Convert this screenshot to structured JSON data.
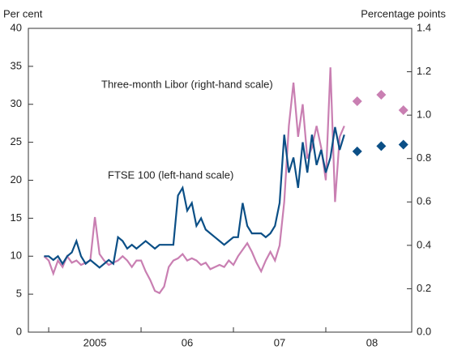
{
  "chart_data": {
    "type": "line",
    "ylabel": "Per cent",
    "y2label": "Percentage points",
    "xlim": [
      2004.78,
      2008.93
    ],
    "xticks": [
      {
        "value": 2005,
        "label": "2005"
      },
      {
        "value": 2006,
        "label": "06"
      },
      {
        "value": 2007,
        "label": "07"
      },
      {
        "value": 2008,
        "label": "08"
      }
    ],
    "ylim": [
      0,
      40
    ],
    "yticks": [
      0,
      5,
      10,
      15,
      20,
      25,
      30,
      35,
      40
    ],
    "y2lim": [
      0,
      1.4
    ],
    "y2ticks": [
      {
        "value": 0,
        "label": "0.0"
      },
      0.2,
      0.4,
      0.6,
      0.8,
      {
        "value": 1,
        "label": "1.0"
      },
      1.2,
      1.4
    ],
    "x": [
      2004.95,
      2005.0,
      2005.05,
      2005.1,
      2005.15,
      2005.2,
      2005.25,
      2005.3,
      2005.35,
      2005.4,
      2005.45,
      2005.5,
      2005.55,
      2005.6,
      2005.65,
      2005.7,
      2005.75,
      2005.8,
      2005.85,
      2005.9,
      2005.95,
      2006.0,
      2006.05,
      2006.1,
      2006.15,
      2006.2,
      2006.25,
      2006.3,
      2006.35,
      2006.4,
      2006.45,
      2006.5,
      2006.55,
      2006.6,
      2006.65,
      2006.7,
      2006.75,
      2006.8,
      2006.85,
      2006.9,
      2006.95,
      2007.0,
      2007.05,
      2007.1,
      2007.15,
      2007.2,
      2007.25,
      2007.3,
      2007.35,
      2007.4,
      2007.45,
      2007.5,
      2007.55,
      2007.6,
      2007.65,
      2007.7,
      2007.75,
      2007.8,
      2007.85,
      2007.9,
      2007.95,
      2008.0,
      2008.05,
      2008.1,
      2008.15,
      2008.2
    ],
    "series": [
      {
        "name": "FTSE 100 (left-hand scale)",
        "color": "#0b4f86",
        "values": [
          10,
          10,
          9.5,
          10,
          9,
          10,
          10.5,
          12,
          10,
          9,
          9.5,
          9,
          8.5,
          9,
          9.5,
          9,
          12.5,
          12,
          11,
          11.5,
          11,
          11.5,
          12,
          11.5,
          11,
          11.5,
          11.5,
          11.5,
          11.5,
          18,
          19,
          16,
          17,
          14,
          15,
          13.5,
          13,
          12.5,
          12,
          11.5,
          12,
          12.5,
          12.5,
          17,
          14,
          13,
          13,
          13,
          12.5,
          13,
          14,
          17,
          26,
          21,
          23,
          19,
          25,
          21,
          26,
          22,
          24,
          21,
          23,
          27,
          24,
          26
        ],
        "forward_x": [
          2008.34,
          2008.6,
          2008.84
        ],
        "forward_values": [
          23.8,
          24.5,
          24.7
        ]
      },
      {
        "name": "Three-month Libor (right-hand scale)",
        "color": "#c97fb2",
        "axis": "y2",
        "values": [
          0.35,
          0.33,
          0.27,
          0.33,
          0.3,
          0.35,
          0.32,
          0.33,
          0.31,
          0.32,
          0.33,
          0.53,
          0.36,
          0.33,
          0.31,
          0.32,
          0.33,
          0.35,
          0.33,
          0.3,
          0.33,
          0.33,
          0.28,
          0.24,
          0.19,
          0.18,
          0.21,
          0.3,
          0.33,
          0.34,
          0.36,
          0.33,
          0.34,
          0.33,
          0.31,
          0.32,
          0.29,
          0.3,
          0.31,
          0.3,
          0.33,
          0.31,
          0.35,
          0.38,
          0.41,
          0.37,
          0.32,
          0.28,
          0.33,
          0.37,
          0.33,
          0.4,
          0.6,
          0.95,
          1.15,
          0.9,
          1.05,
          0.8,
          0.85,
          0.95,
          0.85,
          0.7,
          1.22,
          0.6,
          0.9,
          0.95
        ],
        "forward_x": [
          2008.34,
          2008.6,
          2008.84
        ],
        "forward_values": [
          1.064,
          1.094,
          1.023
        ]
      }
    ]
  }
}
